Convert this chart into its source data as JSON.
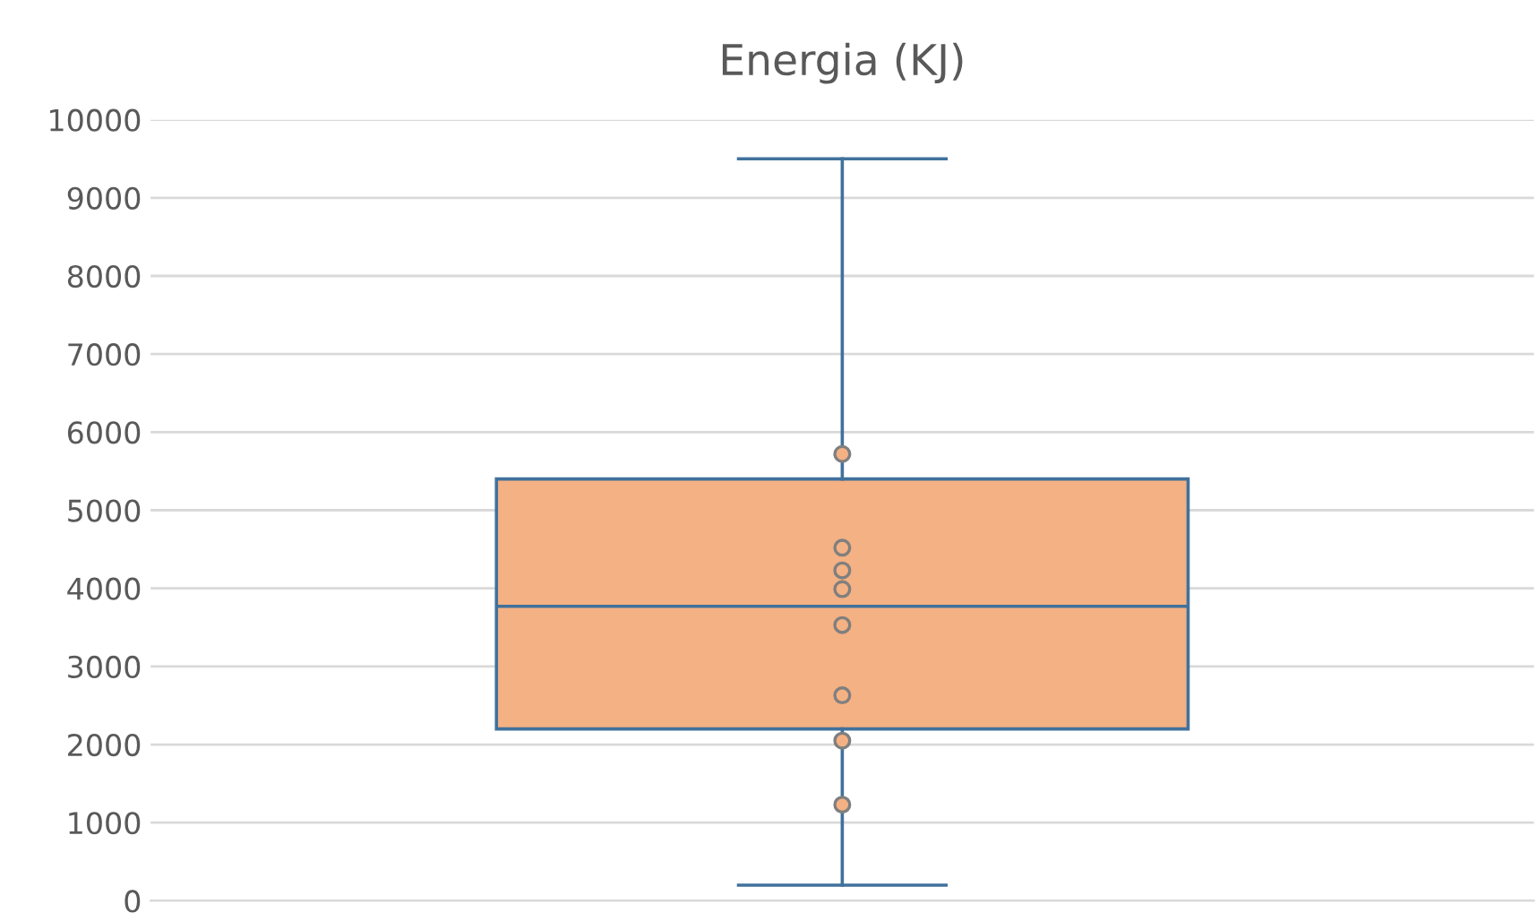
{
  "chart_data": {
    "type": "box",
    "title": "Energia (KJ)",
    "categories": [
      null
    ],
    "series": [
      {
        "color": "#f4b183",
        "boxes": [
          {
            "low": 200,
            "q1": 2200,
            "median": 3770,
            "q3": 5400,
            "high": 9500,
            "outliers": [
              5720,
              4520,
              4230,
              3990,
              3530,
              2630,
              2050,
              1230
            ]
          }
        ]
      }
    ],
    "ylim": [
      0,
      10000
    ],
    "yticks": [
      0,
      1000,
      2000,
      3000,
      4000,
      5000,
      6000,
      7000,
      8000,
      9000,
      10000
    ],
    "grid": "y",
    "marker": "circle"
  }
}
